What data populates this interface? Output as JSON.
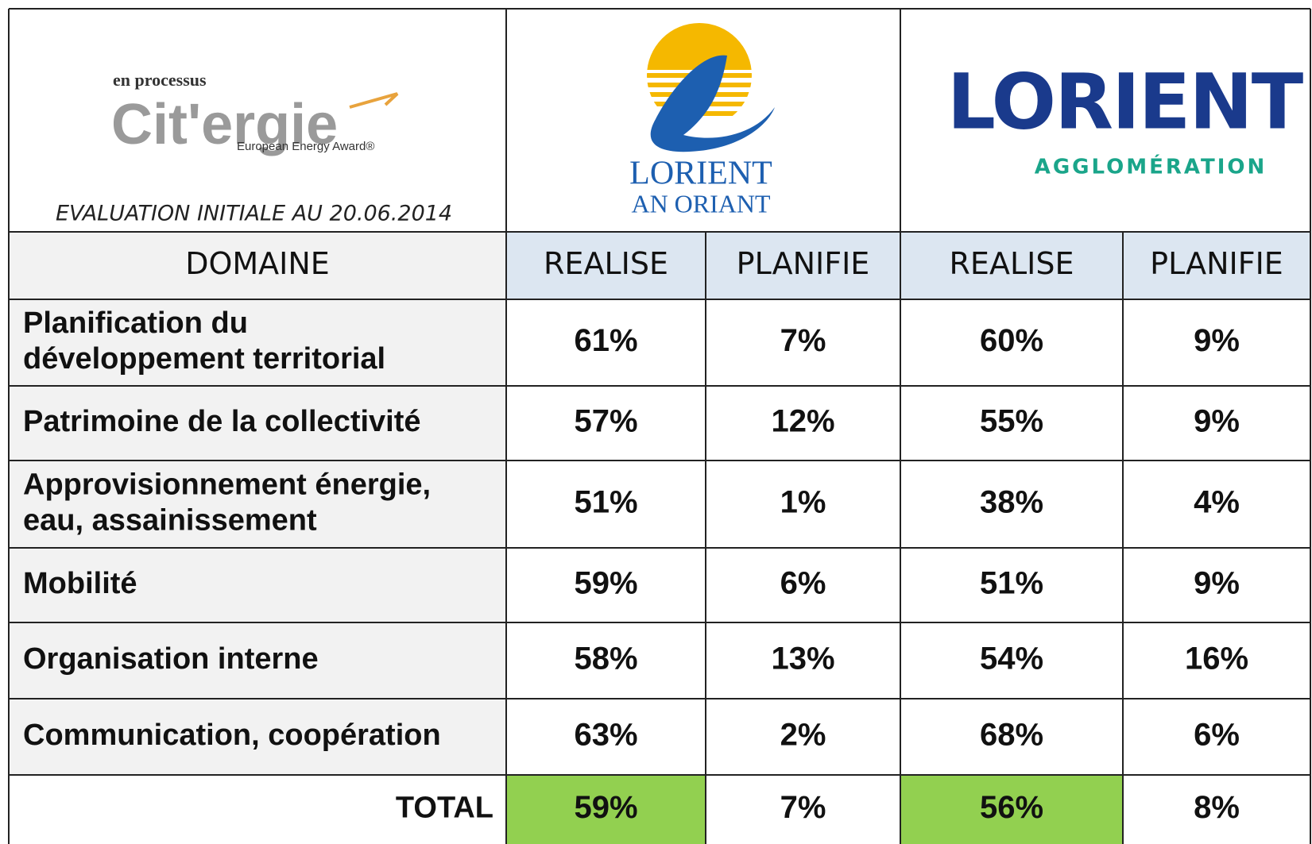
{
  "logos": {
    "citergie": {
      "prefix": "en processus",
      "name": "Cit'ergie",
      "tagline": "European Energy Award®"
    },
    "evaluation": "EVALUATION INITIALE AU 20.06.2014",
    "ville": {
      "name": "LORIENT",
      "subtitle": "AN ORIANT"
    },
    "agglo": {
      "name": "LORIENT",
      "subtitle": "AGGLOMÉRATION"
    }
  },
  "table": {
    "header": [
      "DOMAINE",
      "REALISE",
      "PLANIFIE",
      "REALISE",
      "PLANIFIE"
    ],
    "rows": [
      [
        [
          "Planification du",
          "développement territorial"
        ],
        "61%",
        "7%",
        "60%",
        "9%"
      ],
      [
        [
          "Patrimoine de la collectivité"
        ],
        "57%",
        "12%",
        "55%",
        "9%"
      ],
      [
        [
          "Approvisionnement énergie,",
          "eau, assainissement"
        ],
        "51%",
        "1%",
        "38%",
        "4%"
      ],
      [
        [
          "Mobilité"
        ],
        "59%",
        "6%",
        "51%",
        "9%"
      ],
      [
        [
          "Organisation interne"
        ],
        "58%",
        "13%",
        "54%",
        "16%"
      ],
      [
        [
          "Communication, coopération"
        ],
        "63%",
        "2%",
        "68%",
        "6%"
      ]
    ],
    "total": [
      "TOTAL",
      "59%",
      "7%",
      "56%",
      "8%"
    ],
    "highlight_color": "#92d050",
    "header_color": "#dce6f1",
    "domain_color": "#f2f2f2"
  }
}
